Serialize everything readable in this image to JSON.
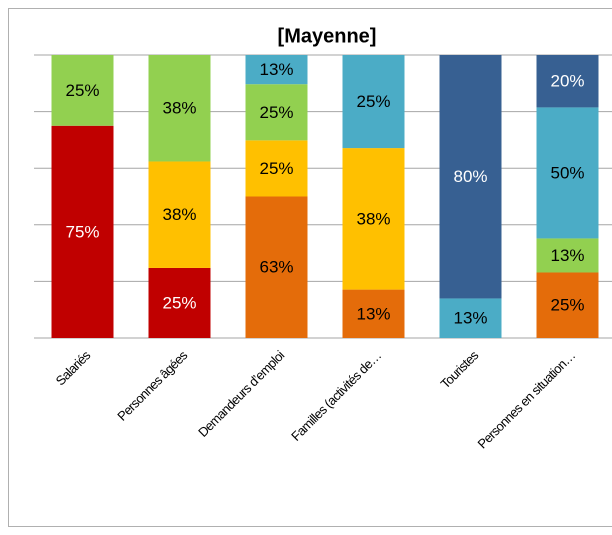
{
  "chart_data": {
    "type": "stacked_percent_bar",
    "title": "[Mayenne]",
    "categories": [
      "Salariés",
      "Personnes âgées",
      "Demandeurs d’emploi",
      "Familles (activités de…",
      "Touristes",
      "Personnes en situation…"
    ],
    "series": [
      {
        "color": "#c00000",
        "label_color": "#ffffff",
        "values": [
          75,
          25,
          null,
          null,
          null,
          null
        ],
        "value_labels": [
          "75%",
          "25%",
          null,
          null,
          null,
          null
        ]
      },
      {
        "color": "#e46c0a",
        "label_color": "#000000",
        "values": [
          null,
          null,
          63,
          13,
          null,
          25
        ],
        "value_labels": [
          null,
          null,
          "63%",
          "13%",
          null,
          "25%"
        ]
      },
      {
        "color": "#ffc000",
        "label_color": "#000000",
        "values": [
          null,
          38,
          25,
          38,
          null,
          null
        ],
        "value_labels": [
          null,
          "38%",
          "25%",
          "38%",
          null,
          null
        ]
      },
      {
        "color": "#92d050",
        "label_color": "#000000",
        "values": [
          25,
          38,
          25,
          null,
          null,
          13
        ],
        "value_labels": [
          "25%",
          "38%",
          "25%",
          null,
          null,
          "13%"
        ]
      },
      {
        "color": "#4bacc6",
        "label_color": "#000000",
        "values": [
          null,
          null,
          13,
          25,
          13,
          50
        ],
        "value_labels": [
          null,
          null,
          "13%",
          "25%",
          "13%",
          "50%"
        ]
      },
      {
        "color": "#376092",
        "label_color": "#ffffff",
        "values": [
          null,
          null,
          null,
          null,
          80,
          20
        ],
        "value_labels": [
          null,
          null,
          null,
          null,
          "80%",
          "20%"
        ]
      }
    ],
    "ylim": [
      0,
      100
    ],
    "yticks": [
      0,
      20,
      40,
      60,
      80,
      100
    ],
    "grid": true
  }
}
